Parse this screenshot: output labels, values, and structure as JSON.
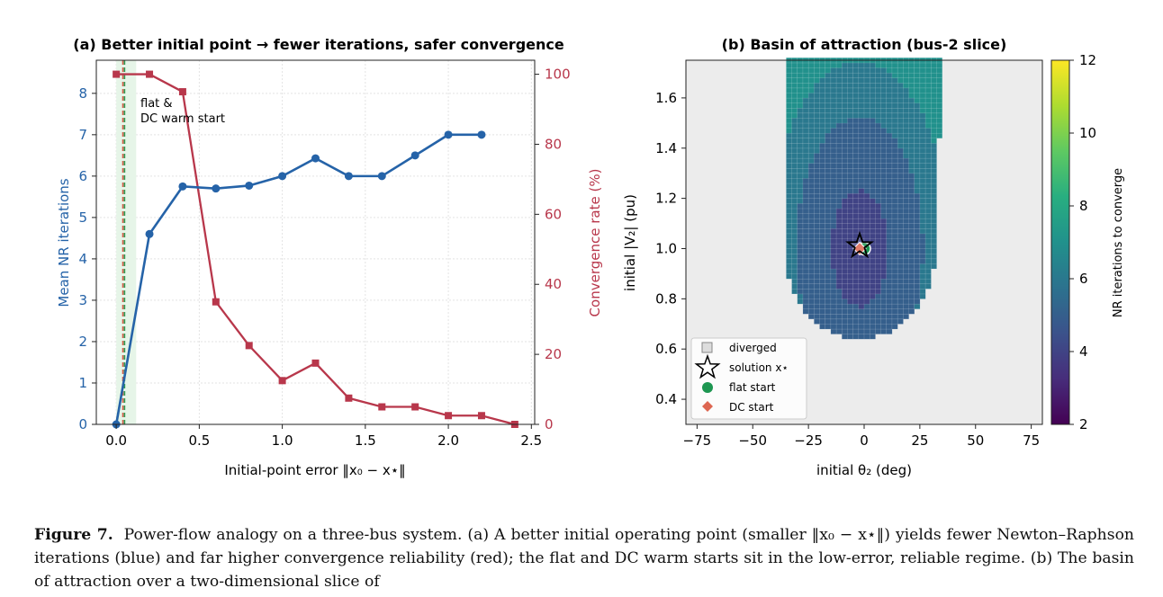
{
  "panel_a": {
    "title": "(a) Better initial point → fewer iterations, safer convergence",
    "xlabel": "Initial-point error  ‖x₀ − x⋆‖",
    "ylabel_left": "Mean NR iterations",
    "ylabel_right": "Convergence rate (%)",
    "annotation": [
      "flat &",
      "DC warm start"
    ],
    "colors": {
      "iterations": "#2563a8",
      "convergence": "#b8374b",
      "flat": "#2e9a52",
      "dc": "#d45b48",
      "band": "#e6f5e8"
    }
  },
  "panel_b": {
    "title": "(b) Basin of attraction (bus-2 slice)",
    "xlabel": "initial θ₂  (deg)",
    "ylabel": "initial |V₂|  (pu)",
    "colorbar_label": "NR iterations to converge",
    "legend": [
      {
        "label": "diverged",
        "icon": "grey-square-icon"
      },
      {
        "label": "solution x⋆",
        "icon": "star-icon"
      },
      {
        "label": "flat start",
        "icon": "green-circle-icon"
      },
      {
        "label": "DC start",
        "icon": "orange-diamond-icon"
      }
    ]
  },
  "chart_data": [
    {
      "type": "line",
      "title": "(a) Better initial point → fewer iterations, safer convergence",
      "xlabel": "Initial-point error  ‖x₀ − x⋆‖",
      "xlim": [
        -0.12,
        2.52
      ],
      "xticks": [
        0.0,
        0.5,
        1.0,
        1.5,
        2.0,
        2.5
      ],
      "series": [
        {
          "name": "Mean NR iterations",
          "axis": "left",
          "ylim": [
            0,
            8.8
          ],
          "yticks": [
            0,
            1,
            2,
            3,
            4,
            5,
            6,
            7,
            8
          ],
          "x": [
            0.0,
            0.2,
            0.4,
            0.6,
            0.8,
            1.0,
            1.2,
            1.4,
            1.6,
            1.8,
            2.0,
            2.2
          ],
          "y": [
            0.0,
            4.6,
            5.75,
            5.7,
            5.77,
            6.0,
            6.43,
            6.0,
            6.0,
            6.5,
            7.0,
            7.0
          ]
        },
        {
          "name": "Convergence rate (%)",
          "axis": "right",
          "ylim": [
            0,
            104
          ],
          "yticks": [
            0,
            20,
            40,
            60,
            80,
            100
          ],
          "x": [
            0.0,
            0.2,
            0.4,
            0.6,
            0.8,
            1.0,
            1.2,
            1.4,
            1.6,
            1.8,
            2.0,
            2.2,
            2.4
          ],
          "y": [
            100,
            100,
            95,
            35,
            22.5,
            12.5,
            17.5,
            7.5,
            5,
            5,
            2.5,
            2.5,
            0
          ]
        }
      ],
      "markers": {
        "flat_start_x": 0.05,
        "dc_start_x": 0.04,
        "warm_band": [
          0.0,
          0.12
        ]
      },
      "grid": true
    },
    {
      "type": "heatmap",
      "title": "(b) Basin of attraction (bus-2 slice)",
      "xlabel": "initial θ₂  (deg)",
      "ylabel": "initial |V₂|  (pu)",
      "xlim": [
        -80,
        80
      ],
      "ylim": [
        0.3,
        1.75
      ],
      "xticks": [
        -75,
        -50,
        -25,
        0,
        25,
        50,
        75
      ],
      "yticks": [
        0.4,
        0.6,
        0.8,
        1.0,
        1.2,
        1.4,
        1.6
      ],
      "colorbar": {
        "min": 2,
        "max": 12,
        "ticks": [
          2,
          4,
          6,
          8,
          10,
          12
        ],
        "label": "NR iterations to converge"
      },
      "solution": {
        "theta": -2,
        "v": 1.01
      },
      "flat_start": {
        "theta": 0,
        "v": 1.0
      },
      "dc_start": {
        "theta": -2,
        "v": 1.0
      },
      "legend_position": "lower-left"
    }
  ],
  "caption": {
    "label": "Figure 7.",
    "text": "Power-flow analogy on a three-bus system. (a) A better initial operating point (smaller ‖x₀ − x⋆‖) yields fewer Newton–Raphson iterations (blue) and far higher convergence reliability (red); the flat and DC warm starts sit in the low-error, reliable regime. (b) The basin of attraction over a two-dimensional slice of"
  }
}
